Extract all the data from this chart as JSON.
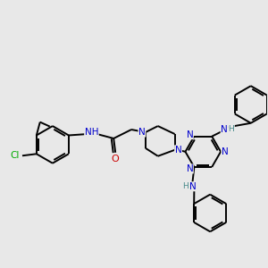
{
  "background_color": "#e8e8e8",
  "figsize": [
    3.0,
    3.0
  ],
  "dpi": 100,
  "atom_colors": {
    "C": "#000000",
    "N": "#0000cc",
    "O": "#cc0000",
    "Cl": "#00aa00",
    "H": "#448888"
  },
  "bond_color": "#000000",
  "bond_width": 1.4
}
